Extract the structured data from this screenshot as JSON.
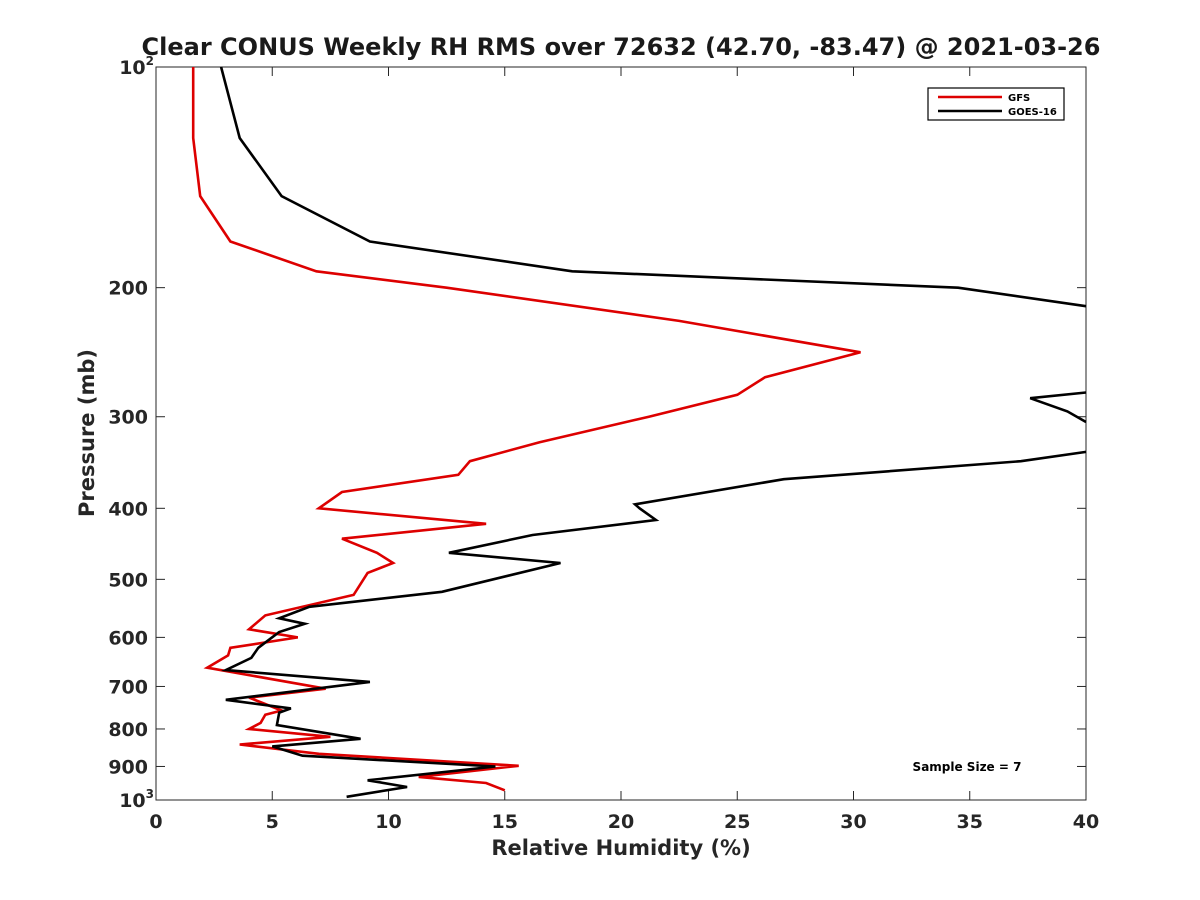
{
  "chart_data": {
    "type": "line",
    "title": "Clear CONUS Weekly RH RMS over 72632 (42.70, -83.47) @ 2021-03-26",
    "xlabel": "Relative Humidity (%)",
    "ylabel": "Pressure (mb)",
    "xlim": [
      0,
      40
    ],
    "ylim": [
      100,
      1000
    ],
    "yscale": "log",
    "y_reversed": true,
    "grid": false,
    "legend_position": "top-right",
    "annotation": "Sample Size = 7",
    "x_ticks": [
      "0",
      "5",
      "10",
      "15",
      "20",
      "25",
      "30",
      "35",
      "40"
    ],
    "y_ticks": [
      {
        "value": 100,
        "base": "10",
        "exp": "2"
      },
      {
        "value": 200,
        "base": "200",
        "exp": ""
      },
      {
        "value": 300,
        "base": "300",
        "exp": ""
      },
      {
        "value": 400,
        "base": "400",
        "exp": ""
      },
      {
        "value": 500,
        "base": "500",
        "exp": ""
      },
      {
        "value": 600,
        "base": "600",
        "exp": ""
      },
      {
        "value": 700,
        "base": "700",
        "exp": ""
      },
      {
        "value": 800,
        "base": "800",
        "exp": ""
      },
      {
        "value": 900,
        "base": "900",
        "exp": ""
      },
      {
        "value": 1000,
        "base": "10",
        "exp": "3"
      }
    ],
    "series": [
      {
        "name": "GFS",
        "color": "#dd0000",
        "points": [
          [
            1.6,
            100
          ],
          [
            1.6,
            125
          ],
          [
            1.9,
            150
          ],
          [
            3.2,
            173
          ],
          [
            6.9,
            190
          ],
          [
            12.5,
            200
          ],
          [
            22.5,
            222
          ],
          [
            30.3,
            245
          ],
          [
            26.2,
            265
          ],
          [
            25.0,
            280
          ],
          [
            21.2,
            300
          ],
          [
            16.5,
            325
          ],
          [
            13.5,
            345
          ],
          [
            13.0,
            360
          ],
          [
            8.0,
            380
          ],
          [
            7.0,
            400
          ],
          [
            14.2,
            420
          ],
          [
            8.0,
            440
          ],
          [
            9.5,
            460
          ],
          [
            10.2,
            475
          ],
          [
            9.1,
            490
          ],
          [
            8.5,
            525
          ],
          [
            4.7,
            560
          ],
          [
            4.0,
            585
          ],
          [
            6.1,
            600
          ],
          [
            3.2,
            620
          ],
          [
            3.1,
            635
          ],
          [
            2.2,
            660
          ],
          [
            7.3,
            705
          ],
          [
            4.0,
            725
          ],
          [
            5.4,
            755
          ],
          [
            4.7,
            765
          ],
          [
            4.5,
            785
          ],
          [
            4.0,
            800
          ],
          [
            7.5,
            820
          ],
          [
            3.6,
            840
          ],
          [
            7.0,
            865
          ],
          [
            15.6,
            898
          ],
          [
            11.3,
            930
          ],
          [
            14.2,
            948
          ],
          [
            15.0,
            970
          ]
        ]
      },
      {
        "name": "GOES-16",
        "color": "#000000",
        "points": [
          [
            2.8,
            100
          ],
          [
            3.6,
            125
          ],
          [
            5.4,
            150
          ],
          [
            9.2,
            173
          ],
          [
            17.9,
            190
          ],
          [
            34.5,
            200
          ],
          [
            40.0,
            212
          ],
          [
            null,
            null
          ],
          [
            40.0,
            278
          ],
          [
            37.6,
            283
          ],
          [
            39.2,
            295
          ],
          [
            40.0,
            305
          ],
          [
            null,
            null
          ],
          [
            40.0,
            335
          ],
          [
            37.2,
            345
          ],
          [
            27.0,
            365
          ],
          [
            20.6,
            395
          ],
          [
            20.8,
            400
          ],
          [
            21.5,
            415
          ],
          [
            16.2,
            435
          ],
          [
            12.6,
            460
          ],
          [
            17.4,
            475
          ],
          [
            12.3,
            520
          ],
          [
            6.6,
            545
          ],
          [
            5.3,
            565
          ],
          [
            6.4,
            575
          ],
          [
            5.3,
            590
          ],
          [
            4.4,
            620
          ],
          [
            4.1,
            640
          ],
          [
            3.0,
            665
          ],
          [
            9.2,
            690
          ],
          [
            3.0,
            730
          ],
          [
            5.8,
            750
          ],
          [
            5.3,
            760
          ],
          [
            5.2,
            790
          ],
          [
            8.8,
            825
          ],
          [
            5.0,
            845
          ],
          [
            6.3,
            870
          ],
          [
            14.6,
            900
          ],
          [
            9.1,
            940
          ],
          [
            10.8,
            960
          ],
          [
            8.2,
            990
          ]
        ]
      }
    ]
  }
}
